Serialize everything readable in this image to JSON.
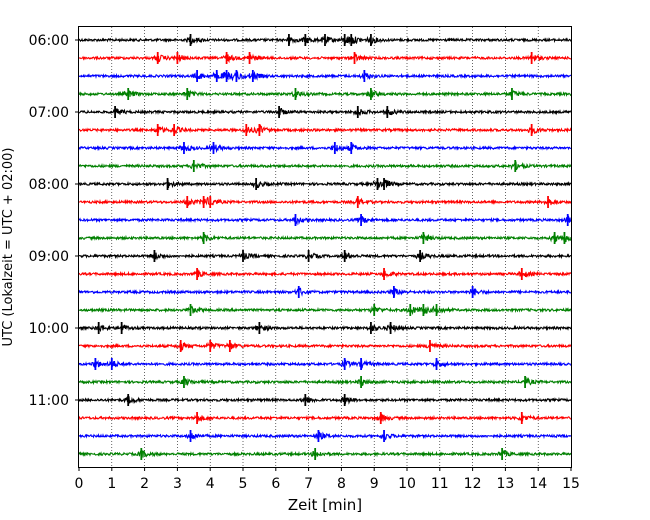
{
  "chart_data": {
    "type": "line",
    "subtype": "helicorder-seismogram",
    "title": "",
    "xlabel": "Zeit  [min]",
    "ylabel": "UTC (Lokalzeit = UTC + 02:00)",
    "xlim": [
      0,
      15
    ],
    "x_ticks": [
      "0",
      "1",
      "2",
      "3",
      "4",
      "5",
      "6",
      "7",
      "8",
      "9",
      "10",
      "11",
      "12",
      "13",
      "14",
      "15"
    ],
    "y_ticks": [
      "06:00",
      "07:00",
      "08:00",
      "09:00",
      "10:00",
      "11:00"
    ],
    "trace_interval_min": 15,
    "start_time": "06:00",
    "grid": "vertical dotted lines at each minute",
    "legend": "none",
    "trace_colors": [
      "#000000",
      "#ff0000",
      "#0000ff",
      "#008000"
    ],
    "traces": [
      {
        "start": "06:00",
        "color": "#000000",
        "events_min": [
          3.4,
          6.4,
          6.9,
          7.5,
          8.1,
          8.3,
          8.9
        ]
      },
      {
        "start": "06:15",
        "color": "#ff0000",
        "events_min": [
          2.4,
          3.0,
          4.5,
          5.2,
          8.4,
          13.8
        ]
      },
      {
        "start": "06:30",
        "color": "#0000ff",
        "events_min": [
          3.6,
          4.2,
          4.5,
          4.8,
          5.3,
          8.7
        ]
      },
      {
        "start": "06:45",
        "color": "#008000",
        "events_min": [
          1.5,
          3.3,
          6.6,
          8.9,
          13.2
        ]
      },
      {
        "start": "07:00",
        "color": "#000000",
        "events_min": [
          1.1,
          6.1,
          8.5,
          9.4
        ]
      },
      {
        "start": "07:15",
        "color": "#ff0000",
        "events_min": [
          2.4,
          2.9,
          5.1,
          5.5,
          13.8
        ]
      },
      {
        "start": "07:30",
        "color": "#0000ff",
        "events_min": [
          3.2,
          4.1,
          7.8,
          8.3
        ]
      },
      {
        "start": "07:45",
        "color": "#008000",
        "events_min": [
          3.5,
          13.3
        ]
      },
      {
        "start": "08:00",
        "color": "#000000",
        "events_min": [
          2.7,
          5.4,
          9.1,
          9.3
        ]
      },
      {
        "start": "08:15",
        "color": "#ff0000",
        "events_min": [
          3.3,
          3.8,
          4.0,
          8.5,
          14.3
        ]
      },
      {
        "start": "08:30",
        "color": "#0000ff",
        "events_min": [
          6.6,
          8.6,
          14.9
        ]
      },
      {
        "start": "08:45",
        "color": "#008000",
        "events_min": [
          3.8,
          10.5,
          14.5,
          14.8
        ]
      },
      {
        "start": "09:00",
        "color": "#000000",
        "events_min": [
          2.3,
          5.0,
          7.0,
          8.1,
          10.4
        ]
      },
      {
        "start": "09:15",
        "color": "#ff0000",
        "events_min": [
          3.6,
          9.3,
          13.5
        ]
      },
      {
        "start": "09:30",
        "color": "#0000ff",
        "events_min": [
          6.7,
          9.6,
          12.0
        ]
      },
      {
        "start": "09:45",
        "color": "#008000",
        "events_min": [
          3.4,
          9.0,
          10.1,
          10.5,
          10.9
        ]
      },
      {
        "start": "10:00",
        "color": "#000000",
        "events_min": [
          0.6,
          1.3,
          5.5,
          8.9,
          9.5
        ]
      },
      {
        "start": "10:15",
        "color": "#ff0000",
        "events_min": [
          3.1,
          4.0,
          4.6,
          10.7
        ]
      },
      {
        "start": "10:30",
        "color": "#0000ff",
        "events_min": [
          0.5,
          1.0,
          8.1,
          8.6,
          10.9
        ]
      },
      {
        "start": "10:45",
        "color": "#008000",
        "events_min": [
          3.2,
          8.6,
          13.6
        ]
      },
      {
        "start": "11:00",
        "color": "#000000",
        "events_min": [
          1.5,
          6.9,
          8.1
        ]
      },
      {
        "start": "11:15",
        "color": "#ff0000",
        "events_min": [
          3.6,
          9.2,
          13.5
        ]
      },
      {
        "start": "11:30",
        "color": "#0000ff",
        "events_min": [
          3.4,
          7.3,
          9.3
        ]
      },
      {
        "start": "11:45",
        "color": "#008000",
        "events_min": [
          1.9,
          7.2,
          12.9
        ]
      }
    ]
  }
}
